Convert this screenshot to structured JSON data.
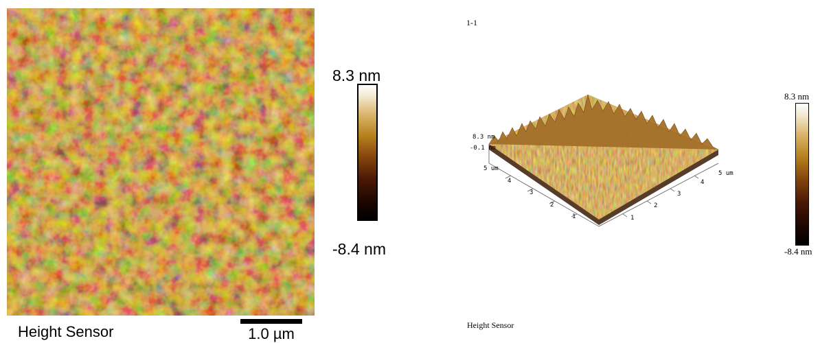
{
  "left_panel": {
    "colorbar_max": "8.3 nm",
    "colorbar_min": "-8.4 nm",
    "channel_label": "Height Sensor",
    "scale_bar_label": "1.0 µm"
  },
  "right_panel": {
    "title": "1-1",
    "z_axis_max": "8.3 nm",
    "z_axis_mid": "-0.1 nm",
    "y_axis_end": "5 um",
    "y_ticks": [
      "1",
      "2",
      "3",
      "4"
    ],
    "x_ticks": [
      "1",
      "2",
      "3",
      "4"
    ],
    "x_axis_end": "5 um",
    "colorbar_max": "8.3 nm",
    "colorbar_min": "-8.4 nm",
    "channel_label": "Height Sensor"
  },
  "colors": {
    "dark": "#1a0600",
    "mid": "#a8651a",
    "light": "#f4e4b4"
  }
}
